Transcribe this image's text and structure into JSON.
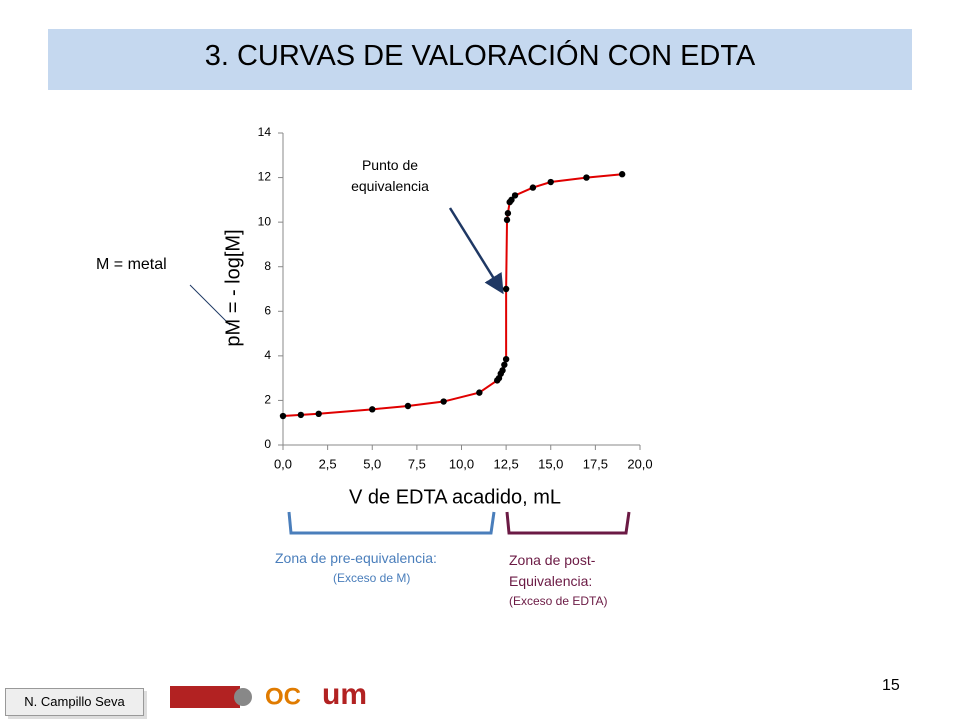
{
  "header": {
    "title": "3. CURVAS DE VALORACIÓN CON EDTA"
  },
  "chart_data": {
    "type": "scatter",
    "x_label": "V de EDTA acadido, mL",
    "y_label": "pM = - log[M]",
    "x": [
      0,
      1,
      2,
      5,
      7,
      9,
      11,
      12,
      12.1,
      12.2,
      12.3,
      12.4,
      12.5,
      12.5,
      12.55,
      12.6,
      12.7,
      12.8,
      13,
      14,
      15,
      17,
      19
    ],
    "values": [
      1.3,
      1.35,
      1.4,
      1.6,
      1.75,
      1.95,
      2.35,
      2.9,
      3.0,
      3.2,
      3.35,
      3.6,
      3.85,
      7.0,
      10.1,
      10.4,
      10.9,
      11.0,
      11.2,
      11.55,
      11.8,
      12.0,
      12.15
    ],
    "color": "#000000",
    "line_color": "#e00000",
    "xlim": [
      0,
      20
    ],
    "ylim": [
      0,
      14
    ],
    "xticks": [
      {
        "value": 0,
        "label": "0,0"
      },
      {
        "value": 2.5,
        "label": "2,5"
      },
      {
        "value": 5,
        "label": "5,0"
      },
      {
        "value": 7.5,
        "label": "7,5"
      },
      {
        "value": 10,
        "label": "10,0"
      },
      {
        "value": 12.5,
        "label": "12,5"
      },
      {
        "value": 15,
        "label": "15,0"
      },
      {
        "value": 17.5,
        "label": "17,5"
      },
      {
        "value": 20,
        "label": "20,0"
      }
    ],
    "yticks": [
      0,
      2,
      4,
      6,
      8,
      10,
      12,
      14
    ],
    "annotations": [
      "Punto de equivalencia",
      "M = metal"
    ]
  },
  "zones": {
    "pre": {
      "title": "Zona de pre-equivalencia:",
      "note": "(Exceso de M)"
    },
    "post": {
      "title": "Zona de post- Equivalencia:",
      "note": "(Exceso de EDTA)"
    }
  },
  "footer": {
    "page": "15",
    "author": "N. Campillo Seva",
    "logo_ocw": "OC",
    "logo_um": "um"
  }
}
